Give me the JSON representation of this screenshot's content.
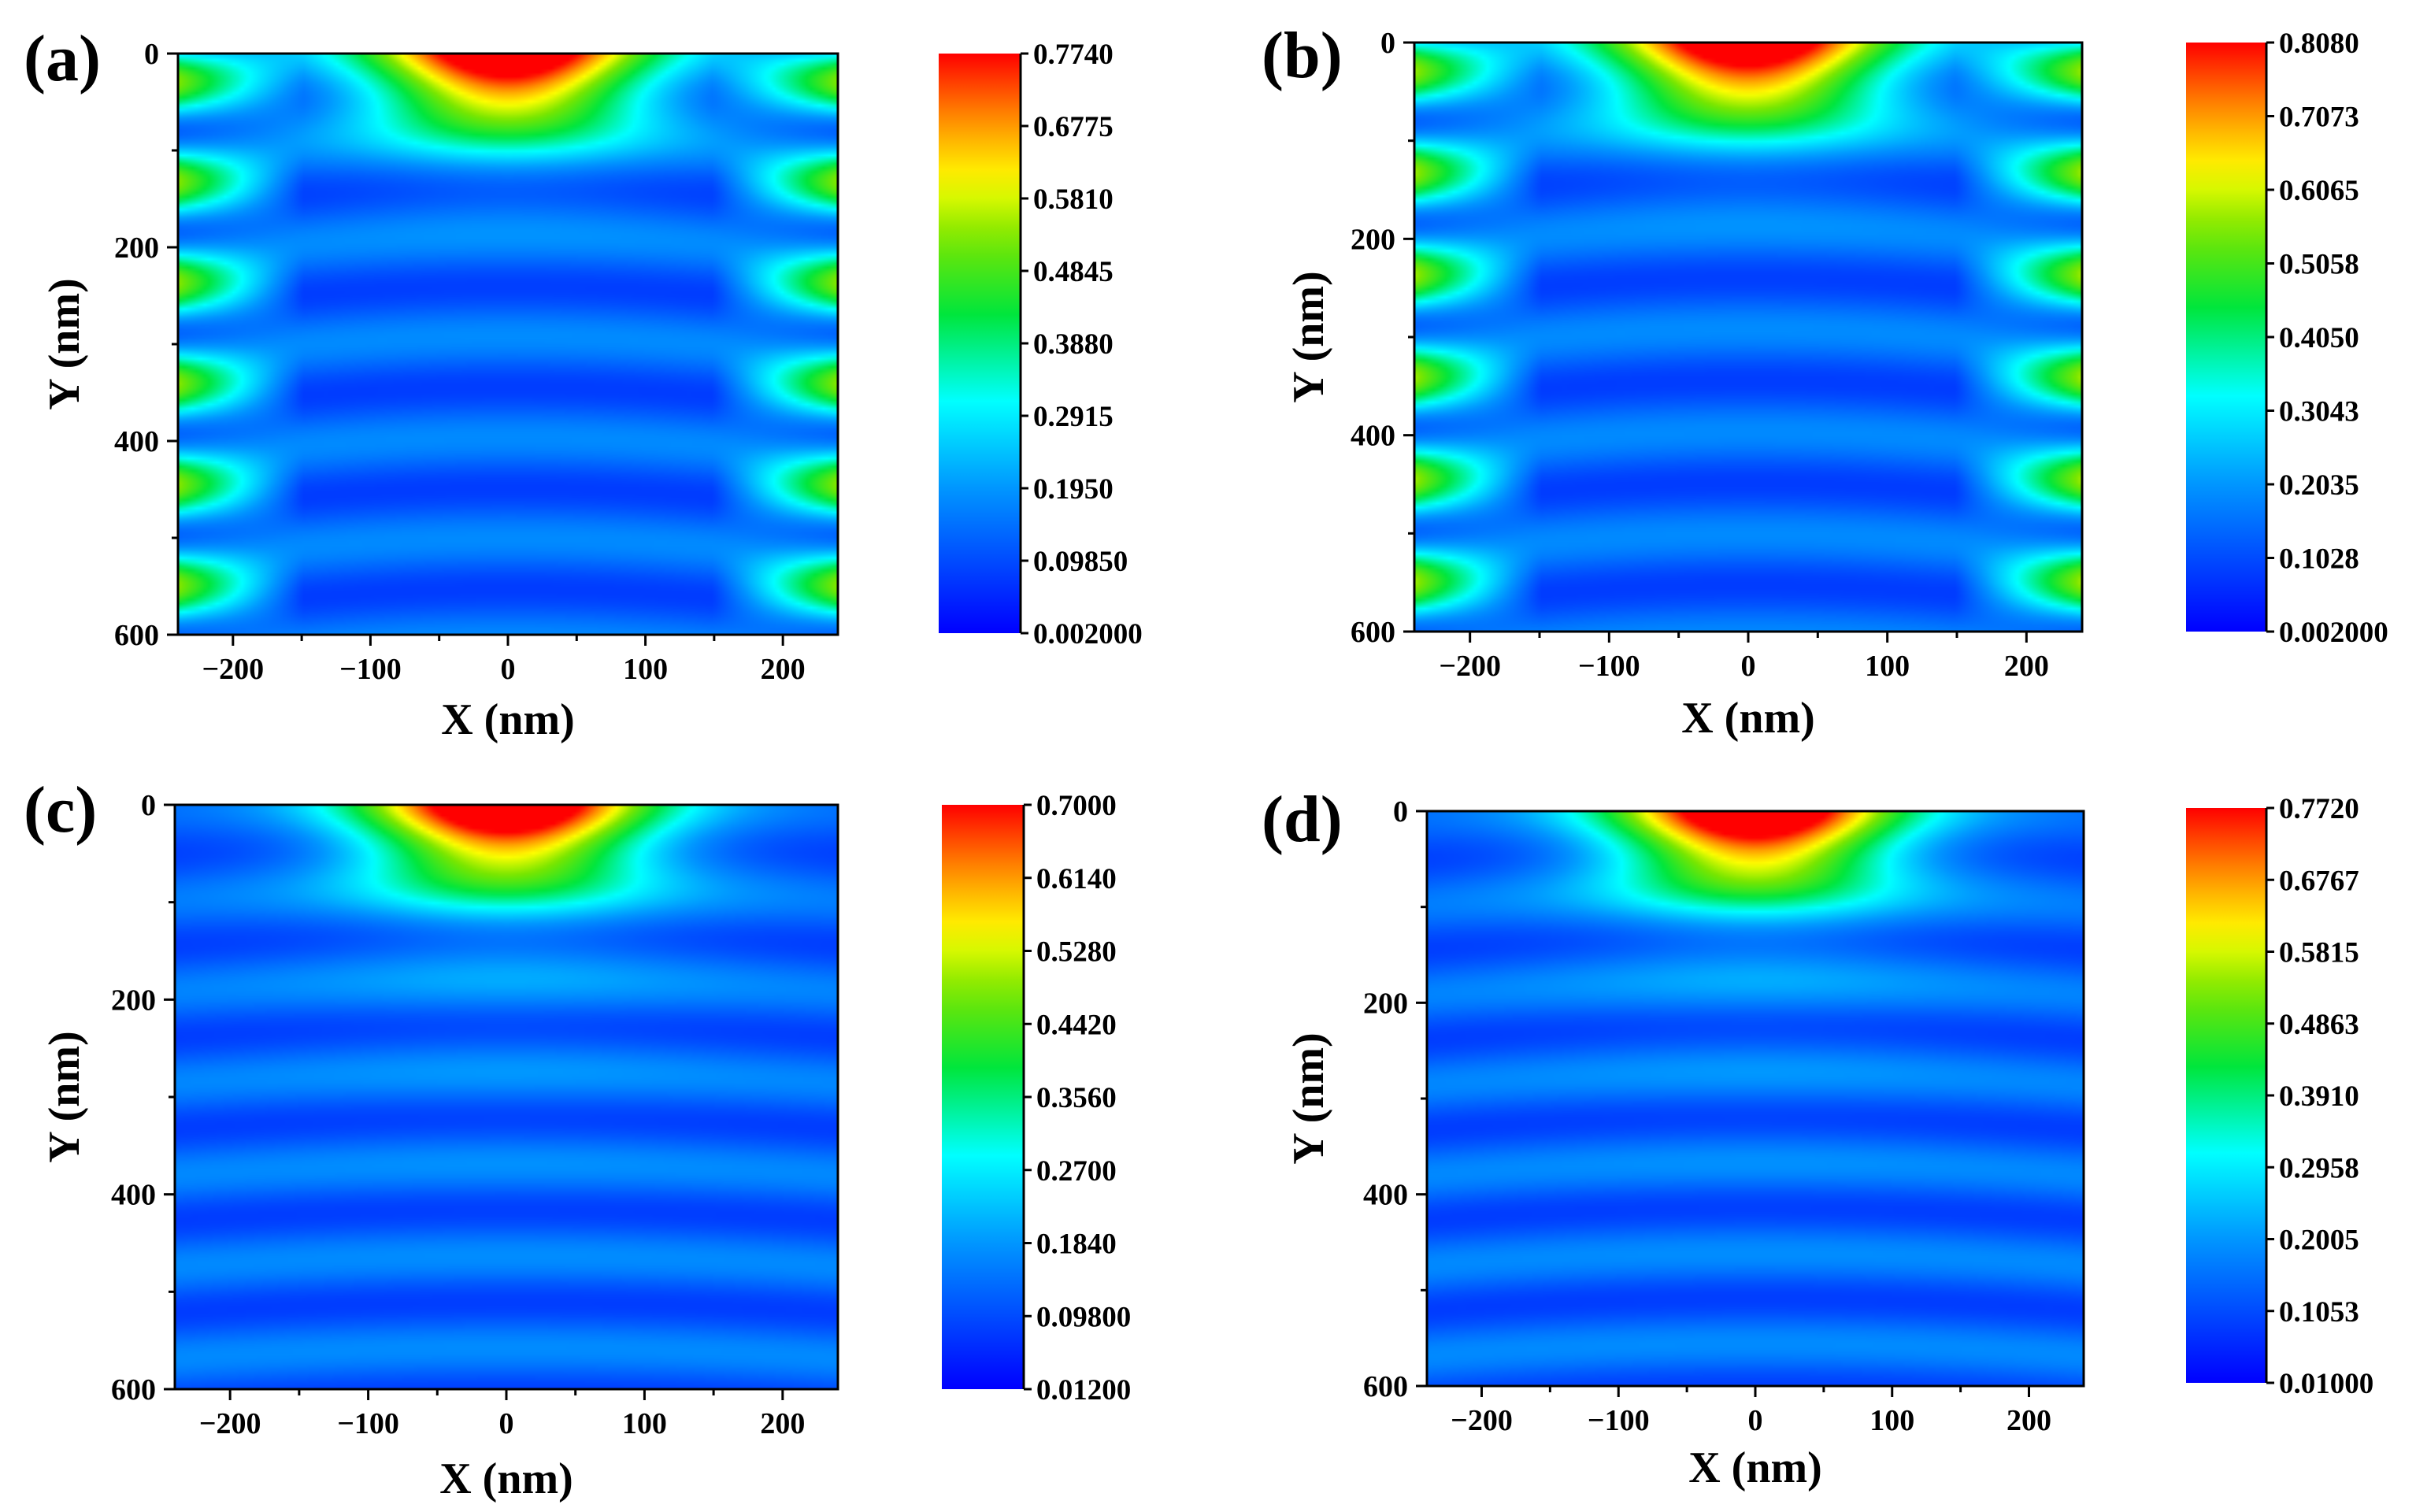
{
  "chart_data": [
    {
      "type": "heatmap",
      "panel_label": "(a)",
      "xlabel": "X (nm)",
      "ylabel": "Y (nm)",
      "xlim": [
        -240,
        240
      ],
      "ylim": [
        600,
        0
      ],
      "x_ticks": [
        -200,
        -100,
        0,
        100,
        200
      ],
      "x_tick_labels": [
        "−200",
        "−100",
        "0",
        "100",
        "200"
      ],
      "y_ticks": [
        0,
        200,
        400,
        600
      ],
      "y_tick_labels": [
        "0",
        "200",
        "400",
        "600"
      ],
      "colorbar": {
        "min": 0.002,
        "max": 0.774,
        "colormap": "rainbow (blue to red)",
        "labels": [
          "0.7740",
          "0.6775",
          "0.5810",
          "0.4845",
          "0.3880",
          "0.2915",
          "0.1950",
          "0.09850",
          "0.002000"
        ]
      },
      "field": {
        "peak": 0.774,
        "side_lobes": true,
        "side_strength": 0.33,
        "stripe_period_nm": 105,
        "decay_nm": 70,
        "band_curvature": 0.55
      }
    },
    {
      "type": "heatmap",
      "panel_label": "(b)",
      "xlabel": "X (nm)",
      "ylabel": "Y (nm)",
      "xlim": [
        -240,
        240
      ],
      "ylim": [
        600,
        0
      ],
      "x_ticks": [
        -200,
        -100,
        0,
        100,
        200
      ],
      "x_tick_labels": [
        "−200",
        "−100",
        "0",
        "100",
        "200"
      ],
      "y_ticks": [
        0,
        200,
        400,
        600
      ],
      "y_tick_labels": [
        "0",
        "200",
        "400",
        "600"
      ],
      "colorbar": {
        "min": 0.002,
        "max": 0.808,
        "colormap": "rainbow (blue to red)",
        "labels": [
          "0.8080",
          "0.7073",
          "0.6065",
          "0.5058",
          "0.4050",
          "0.3043",
          "0.2035",
          "0.1028",
          "0.002000"
        ]
      },
      "field": {
        "peak": 0.808,
        "side_lobes": true,
        "side_strength": 0.34,
        "stripe_period_nm": 105,
        "decay_nm": 70,
        "band_curvature": 0.55
      }
    },
    {
      "type": "heatmap",
      "panel_label": "(c)",
      "xlabel": "X (nm)",
      "ylabel": "Y (nm)",
      "xlim": [
        -240,
        240
      ],
      "ylim": [
        600,
        0
      ],
      "x_ticks": [
        -200,
        -100,
        0,
        100,
        200
      ],
      "x_tick_labels": [
        "−200",
        "−100",
        "0",
        "100",
        "200"
      ],
      "y_ticks": [
        0,
        200,
        400,
        600
      ],
      "y_tick_labels": [
        "0",
        "200",
        "400",
        "600"
      ],
      "colorbar": {
        "min": 0.012,
        "max": 0.7,
        "colormap": "rainbow (blue to red)",
        "labels": [
          "0.7000",
          "0.6140",
          "0.5280",
          "0.4420",
          "0.3560",
          "0.2700",
          "0.1840",
          "0.09800",
          "0.01200"
        ]
      },
      "field": {
        "peak": 0.7,
        "side_lobes": false,
        "side_strength": 0.0,
        "stripe_period_nm": 95,
        "decay_nm": 130,
        "band_curvature": 0.25
      }
    },
    {
      "type": "heatmap",
      "panel_label": "(d)",
      "xlabel": "X (nm)",
      "ylabel": "Y (nm)",
      "xlim": [
        -240,
        240
      ],
      "ylim": [
        600,
        0
      ],
      "x_ticks": [
        -200,
        -100,
        0,
        100,
        200
      ],
      "x_tick_labels": [
        "−200",
        "−100",
        "0",
        "100",
        "200"
      ],
      "y_ticks": [
        0,
        200,
        400,
        600
      ],
      "y_tick_labels": [
        "0",
        "200",
        "400",
        "600"
      ],
      "colorbar": {
        "min": 0.01,
        "max": 0.772,
        "colormap": "rainbow (blue to red)",
        "labels": [
          "0.7720",
          "0.6767",
          "0.5815",
          "0.4863",
          "0.3910",
          "0.2958",
          "0.2005",
          "0.1053",
          "0.01000"
        ]
      },
      "field": {
        "peak": 0.772,
        "side_lobes": false,
        "side_strength": 0.0,
        "stripe_period_nm": 95,
        "decay_nm": 130,
        "band_curvature": 0.3
      }
    }
  ]
}
